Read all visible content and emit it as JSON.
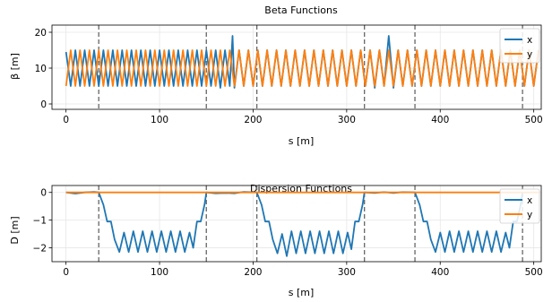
{
  "chart_data": [
    {
      "type": "line",
      "title": "Beta Functions",
      "xlabel": "s [m]",
      "ylabel": "β [m]",
      "xlim": [
        -15,
        508
      ],
      "ylim": [
        -1.5,
        22
      ],
      "xticks": [
        0,
        100,
        200,
        300,
        400,
        500
      ],
      "yticks": [
        0,
        10,
        20
      ],
      "grid": true,
      "legend": "upper right",
      "vlines": [
        35,
        150,
        204,
        319,
        373,
        488
      ],
      "series": [
        {
          "name": "x",
          "color": "#1f77b4",
          "description": "oscillates between ~4.5 and ~15 m with period ~10 m; spikes up to ~19 m near s=178 and s=345",
          "x": [
            0,
            5,
            10,
            15,
            20,
            25,
            30,
            35,
            40,
            45,
            50,
            55,
            60,
            65,
            70,
            75,
            80,
            85,
            90,
            95,
            100,
            105,
            110,
            115,
            120,
            125,
            130,
            135,
            140,
            145,
            150,
            155,
            160,
            165,
            170,
            175,
            178,
            180,
            185,
            190,
            195,
            200,
            205,
            210,
            215,
            220,
            225,
            230,
            235,
            240,
            245,
            250,
            255,
            260,
            265,
            270,
            275,
            280,
            285,
            290,
            295,
            300,
            305,
            310,
            315,
            320,
            325,
            330,
            335,
            340,
            345,
            350,
            355,
            360,
            365,
            370,
            375,
            380,
            385,
            390,
            395,
            400,
            405,
            410,
            415,
            420,
            425,
            430,
            435,
            440,
            445,
            450,
            455,
            460,
            465,
            470,
            475,
            480,
            485,
            490,
            495,
            500,
            505
          ],
          "y": [
            14.5,
            5.0,
            15.0,
            5.0,
            15.0,
            5.0,
            15.0,
            5.0,
            15.0,
            5.0,
            15.0,
            5.0,
            15.0,
            5.0,
            15.0,
            5.0,
            15.0,
            5.0,
            15.0,
            5.0,
            15.0,
            5.0,
            15.0,
            5.0,
            15.0,
            5.0,
            15.0,
            5.0,
            15.0,
            5.0,
            15.0,
            5.0,
            15.0,
            4.5,
            15.0,
            5.0,
            19.0,
            4.5,
            15.0,
            5.0,
            15.0,
            5.0,
            15.0,
            5.0,
            15.0,
            5.0,
            15.0,
            5.0,
            15.0,
            5.0,
            15.0,
            5.0,
            15.0,
            5.0,
            15.0,
            5.0,
            15.0,
            5.0,
            15.0,
            5.0,
            15.0,
            5.0,
            15.0,
            5.0,
            15.0,
            5.0,
            15.0,
            4.5,
            15.0,
            5.0,
            19.0,
            4.5,
            15.0,
            5.0,
            15.0,
            5.0,
            15.0,
            5.0,
            15.0,
            5.0,
            15.0,
            5.0,
            15.0,
            5.0,
            15.0,
            5.0,
            15.0,
            5.0,
            15.0,
            5.0,
            15.0,
            5.0,
            15.0,
            5.0,
            15.0,
            5.0,
            15.0,
            5.0,
            15.0,
            5.0,
            15.0,
            5.0,
            15.0
          ]
        },
        {
          "name": "y",
          "color": "#ff7f0e",
          "description": "oscillates between ~5 and ~15 m in antiphase with x",
          "x": [
            0,
            5,
            10,
            15,
            20,
            25,
            30,
            35,
            40,
            45,
            50,
            55,
            60,
            65,
            70,
            75,
            80,
            85,
            90,
            95,
            100,
            105,
            110,
            115,
            120,
            125,
            130,
            135,
            140,
            145,
            150,
            155,
            160,
            165,
            170,
            175,
            180,
            185,
            190,
            195,
            200,
            205,
            210,
            215,
            220,
            225,
            230,
            235,
            240,
            245,
            250,
            255,
            260,
            265,
            270,
            275,
            280,
            285,
            290,
            295,
            300,
            305,
            310,
            315,
            320,
            325,
            330,
            335,
            340,
            345,
            350,
            355,
            360,
            365,
            370,
            375,
            380,
            385,
            390,
            395,
            400,
            405,
            410,
            415,
            420,
            425,
            430,
            435,
            440,
            445,
            450,
            455,
            460,
            465,
            470,
            475,
            480,
            485,
            490,
            495,
            500,
            505
          ],
          "y": [
            5.0,
            15.0,
            5.0,
            15.0,
            5.0,
            15.0,
            5.0,
            15.0,
            5.0,
            15.0,
            5.0,
            15.0,
            5.0,
            15.0,
            5.0,
            15.0,
            5.0,
            15.0,
            5.0,
            15.0,
            5.0,
            15.0,
            5.0,
            15.0,
            5.0,
            15.0,
            5.0,
            15.0,
            5.0,
            15.0,
            5.0,
            15.0,
            5.0,
            15.0,
            5.0,
            15.0,
            5.0,
            15.0,
            5.0,
            15.0,
            5.0,
            15.0,
            5.0,
            15.0,
            5.0,
            15.0,
            5.0,
            15.0,
            5.0,
            15.0,
            5.0,
            15.0,
            5.0,
            15.0,
            5.0,
            15.0,
            5.0,
            15.0,
            5.0,
            15.0,
            5.0,
            15.0,
            5.0,
            15.0,
            5.0,
            15.0,
            5.0,
            15.0,
            5.0,
            15.0,
            5.0,
            15.0,
            5.0,
            15.0,
            5.0,
            15.0,
            5.0,
            15.0,
            5.0,
            15.0,
            5.0,
            15.0,
            5.0,
            15.0,
            5.0,
            15.0,
            5.0,
            15.0,
            5.0,
            15.0,
            5.0,
            15.0,
            5.0,
            15.0,
            5.0,
            15.0,
            5.0,
            15.0,
            5.0,
            15.0,
            5.0,
            15.0
          ]
        }
      ]
    },
    {
      "type": "line",
      "title": "Dispersion Functions",
      "xlabel": "s [m]",
      "ylabel": "D [m]",
      "xlim": [
        -15,
        508
      ],
      "ylim": [
        -2.5,
        0.25
      ],
      "xticks": [
        0,
        100,
        200,
        300,
        400,
        500
      ],
      "yticks": [
        0,
        -1,
        -2
      ],
      "grid": true,
      "legend": "upper right",
      "vlines": [
        35,
        150,
        204,
        319,
        373,
        488
      ],
      "series": [
        {
          "name": "x",
          "color": "#1f77b4",
          "x": [
            0,
            10,
            20,
            30,
            35,
            40,
            44,
            48,
            52,
            57,
            62,
            67,
            72,
            77,
            82,
            87,
            92,
            97,
            102,
            107,
            112,
            117,
            122,
            127,
            132,
            136,
            140,
            144,
            148,
            150,
            160,
            170,
            180,
            190,
            204,
            209,
            213,
            217,
            221,
            226,
            231,
            236,
            241,
            246,
            251,
            256,
            261,
            266,
            271,
            276,
            281,
            286,
            291,
            296,
            301,
            305,
            309,
            313,
            317,
            319,
            330,
            340,
            350,
            360,
            373,
            378,
            382,
            386,
            390,
            395,
            400,
            405,
            410,
            415,
            420,
            425,
            430,
            435,
            440,
            445,
            450,
            455,
            460,
            465,
            470,
            474,
            478,
            482,
            486,
            488
          ],
          "y": [
            0,
            -0.04,
            0,
            0.02,
            0,
            -0.45,
            -1.05,
            -1.05,
            -1.7,
            -2.15,
            -1.45,
            -2.15,
            -1.4,
            -2.15,
            -1.4,
            -2.15,
            -1.4,
            -2.15,
            -1.4,
            -2.15,
            -1.4,
            -2.15,
            -1.4,
            -2.15,
            -1.45,
            -2.0,
            -1.05,
            -1.05,
            -0.45,
            0,
            -0.03,
            -0.02,
            -0.03,
            0.02,
            0,
            -0.45,
            -1.05,
            -1.05,
            -1.7,
            -2.2,
            -1.5,
            -2.3,
            -1.4,
            -2.2,
            -1.4,
            -2.2,
            -1.4,
            -2.2,
            -1.4,
            -2.2,
            -1.4,
            -2.2,
            -1.4,
            -2.2,
            -1.45,
            -2.05,
            -1.05,
            -1.05,
            -0.45,
            0,
            -0.02,
            0.01,
            -0.02,
            0.01,
            0,
            -0.45,
            -1.05,
            -1.05,
            -1.7,
            -2.15,
            -1.45,
            -2.15,
            -1.4,
            -2.15,
            -1.4,
            -2.15,
            -1.4,
            -2.15,
            -1.4,
            -2.15,
            -1.4,
            -2.15,
            -1.4,
            -2.15,
            -1.45,
            -2.0,
            -1.05,
            -1.05,
            -0.45,
            0
          ]
        },
        {
          "name": "y",
          "color": "#ff7f0e",
          "x": [
            0,
            505
          ],
          "y": [
            0,
            0
          ]
        }
      ]
    }
  ]
}
